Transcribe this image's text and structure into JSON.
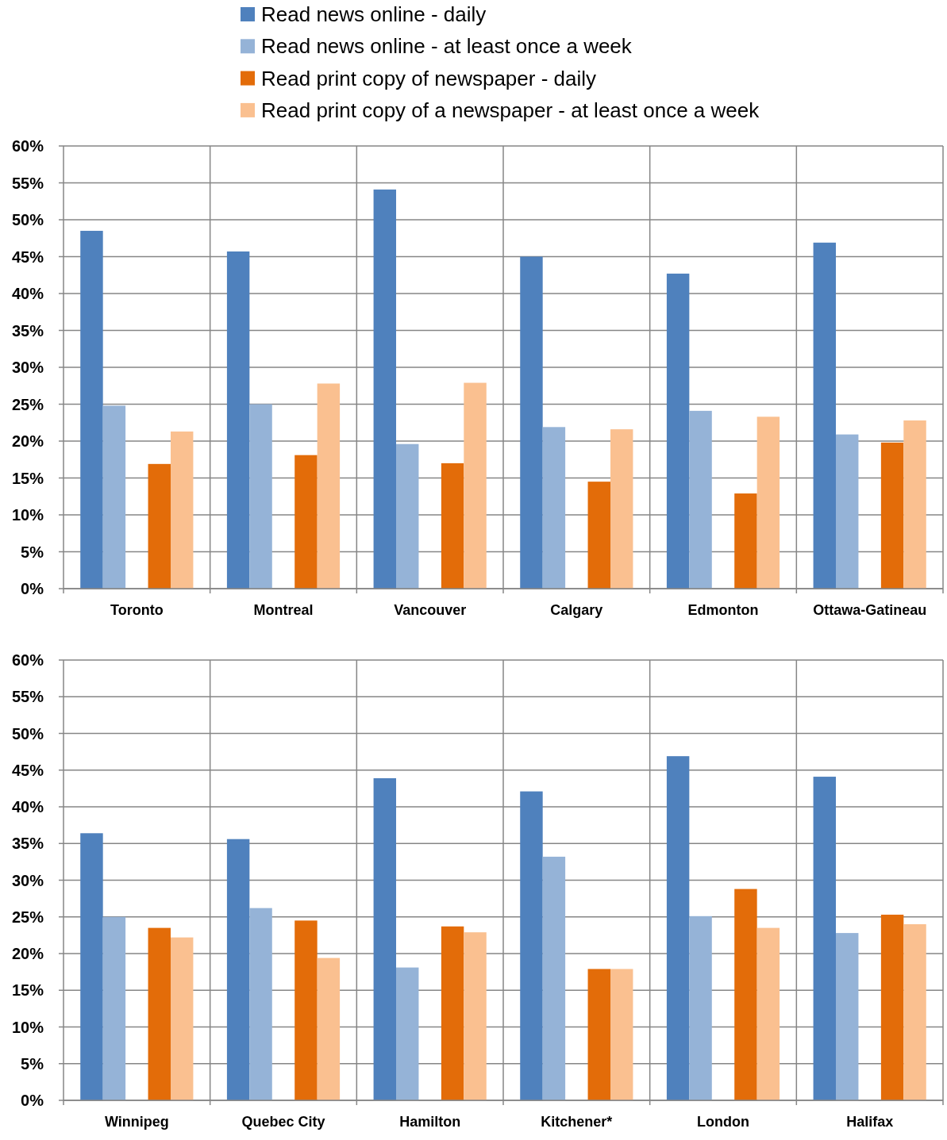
{
  "chart_data": [
    {
      "type": "bar",
      "categories": [
        "Toronto",
        "Montreal",
        "Vancouver",
        "Calgary",
        "Edmonton",
        "Ottawa-Gatineau"
      ],
      "series": [
        {
          "name": "Read news online - daily",
          "color": "#4f81bd",
          "values": [
            48.5,
            45.7,
            54.1,
            45.0,
            42.7,
            46.9
          ]
        },
        {
          "name": "Read news online - at least once a week",
          "color": "#95b3d7",
          "values": [
            24.8,
            25.0,
            19.6,
            21.9,
            24.1,
            20.9
          ]
        },
        {
          "name": "Read print copy of newspaper - daily",
          "color": "#e36c09",
          "values": [
            16.9,
            18.1,
            17.0,
            14.5,
            12.9,
            19.8
          ]
        },
        {
          "name": "Read print copy of a newspaper - at least once a week",
          "color": "#fac090",
          "values": [
            21.3,
            27.8,
            27.9,
            21.6,
            23.3,
            22.8
          ]
        }
      ],
      "ylim": [
        0,
        60
      ],
      "yticks": [
        {
          "value": 0,
          "label": "0%"
        },
        {
          "value": 5,
          "label": "5%"
        },
        {
          "value": 10,
          "label": "10%"
        },
        {
          "value": 15,
          "label": "15%"
        },
        {
          "value": 20,
          "label": "20%"
        },
        {
          "value": 25,
          "label": "25%"
        },
        {
          "value": 30,
          "label": "30%"
        },
        {
          "value": 35,
          "label": "35%"
        },
        {
          "value": 40,
          "label": "40%"
        },
        {
          "value": 45,
          "label": "45%"
        },
        {
          "value": 50,
          "label": "50%"
        },
        {
          "value": 55,
          "label": "55%"
        },
        {
          "value": 60,
          "label": "60%"
        }
      ],
      "grid": true,
      "legend": "top"
    },
    {
      "type": "bar",
      "categories": [
        "Winnipeg",
        "Quebec City",
        "Hamilton",
        "Kitchener*",
        "London",
        "Halifax"
      ],
      "series": [
        {
          "color": "#4f81bd",
          "values": [
            36.4,
            35.6,
            43.9,
            42.1,
            46.9,
            44.1
          ]
        },
        {
          "color": "#95b3d7",
          "values": [
            25.0,
            26.2,
            18.1,
            33.2,
            25.1,
            22.8
          ]
        },
        {
          "color": "#e36c09",
          "values": [
            23.5,
            24.5,
            23.7,
            17.9,
            28.8,
            25.3
          ]
        },
        {
          "color": "#fac090",
          "values": [
            22.2,
            19.4,
            22.9,
            17.9,
            23.5,
            24.0
          ]
        }
      ],
      "ylim": [
        0,
        60
      ],
      "yticks": [
        {
          "value": 0,
          "label": "0%"
        },
        {
          "value": 5,
          "label": "5%"
        },
        {
          "value": 10,
          "label": "10%"
        },
        {
          "value": 15,
          "label": "15%"
        },
        {
          "value": 20,
          "label": "20%"
        },
        {
          "value": 25,
          "label": "25%"
        },
        {
          "value": 30,
          "label": "30%"
        },
        {
          "value": 35,
          "label": "35%"
        },
        {
          "value": 40,
          "label": "40%"
        },
        {
          "value": 45,
          "label": "45%"
        },
        {
          "value": 50,
          "label": "50%"
        },
        {
          "value": 55,
          "label": "55%"
        },
        {
          "value": 60,
          "label": "60%"
        }
      ],
      "grid": true
    }
  ]
}
